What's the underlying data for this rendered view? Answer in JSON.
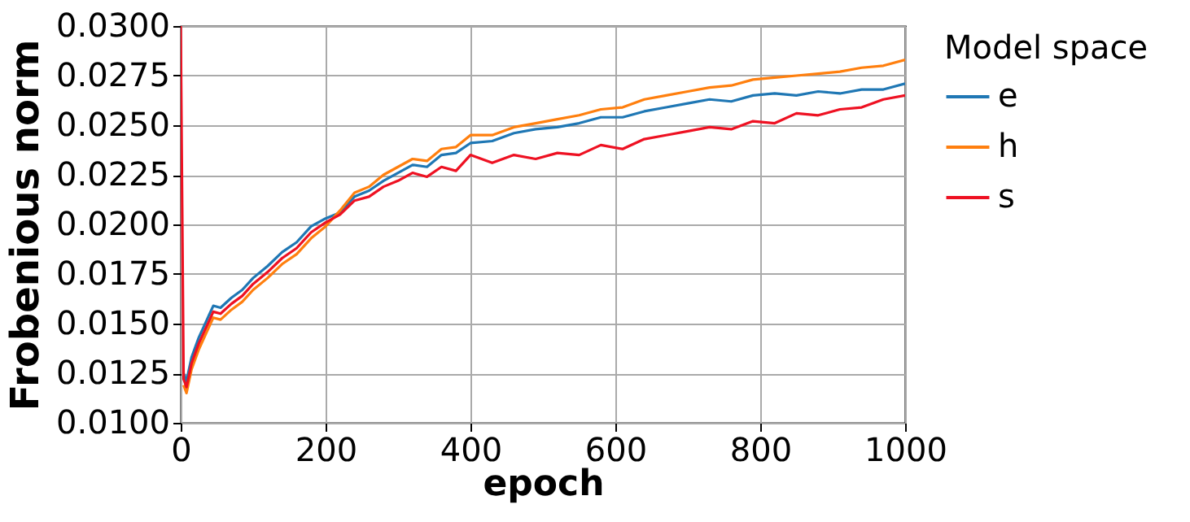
{
  "chart_data": {
    "type": "line",
    "xlabel": "epoch",
    "ylabel": "Frobenious norm",
    "legend_title": "Model space",
    "legend": "right",
    "grid": true,
    "x": [
      0,
      4,
      8,
      15,
      25,
      35,
      45,
      55,
      70,
      85,
      100,
      120,
      140,
      160,
      180,
      200,
      220,
      240,
      260,
      280,
      300,
      320,
      340,
      360,
      380,
      400,
      430,
      460,
      490,
      520,
      550,
      580,
      610,
      640,
      670,
      700,
      730,
      760,
      790,
      820,
      850,
      880,
      910,
      940,
      970,
      1000
    ],
    "xlim": [
      0,
      1000
    ],
    "xticks": [
      0,
      200,
      400,
      600,
      800,
      1000
    ],
    "ylim": [
      0.01,
      0.03
    ],
    "yticks": [
      {
        "value": 0.01,
        "label": "0.0100"
      },
      {
        "value": 0.0125,
        "label": "0.0125"
      },
      {
        "value": 0.015,
        "label": "0.0150"
      },
      {
        "value": 0.0175,
        "label": "0.0175"
      },
      {
        "value": 0.02,
        "label": "0.0200"
      },
      {
        "value": 0.0225,
        "label": "0.0225"
      },
      {
        "value": 0.025,
        "label": "0.0250"
      },
      {
        "value": 0.0275,
        "label": "0.0275"
      },
      {
        "value": 0.03,
        "label": "0.0300"
      }
    ],
    "series": [
      {
        "name": "e",
        "color": "#1f77b4",
        "values": [
          null,
          0.0125,
          0.0121,
          0.0133,
          0.0143,
          0.0151,
          0.0159,
          0.0158,
          0.0163,
          0.0167,
          0.0173,
          0.0179,
          0.0186,
          0.0191,
          0.0199,
          0.0203,
          0.0206,
          0.0214,
          0.0217,
          0.0222,
          0.0226,
          0.023,
          0.0229,
          0.0235,
          0.0236,
          0.0241,
          0.0242,
          0.0246,
          0.0248,
          0.0249,
          0.0251,
          0.0254,
          0.0254,
          0.0257,
          0.0259,
          0.0261,
          0.0263,
          0.0262,
          0.0265,
          0.0266,
          0.0265,
          0.0267,
          0.0266,
          0.0268,
          0.0268,
          0.0271
        ]
      },
      {
        "name": "h",
        "color": "#ff7f0e",
        "values": [
          null,
          0.0119,
          0.0115,
          0.0127,
          0.0137,
          0.0145,
          0.0153,
          0.0152,
          0.0157,
          0.0161,
          0.0167,
          0.0173,
          0.018,
          0.0185,
          0.0193,
          0.0199,
          0.0207,
          0.0216,
          0.0219,
          0.0225,
          0.0229,
          0.0233,
          0.0232,
          0.0238,
          0.0239,
          0.0245,
          0.0245,
          0.0249,
          0.0251,
          0.0253,
          0.0255,
          0.0258,
          0.0259,
          0.0263,
          0.0265,
          0.0267,
          0.0269,
          0.027,
          0.0273,
          0.0274,
          0.0275,
          0.0276,
          0.0277,
          0.0279,
          0.028,
          0.0283
        ]
      },
      {
        "name": "s",
        "color": "#ee1122",
        "values": [
          0.03,
          0.0122,
          0.0118,
          0.013,
          0.014,
          0.0148,
          0.0156,
          0.0155,
          0.016,
          0.0164,
          0.017,
          0.0176,
          0.0183,
          0.0188,
          0.0196,
          0.0201,
          0.0205,
          0.0212,
          0.0214,
          0.0219,
          0.0222,
          0.0226,
          0.0224,
          0.0229,
          0.0227,
          0.0235,
          0.0231,
          0.0235,
          0.0233,
          0.0236,
          0.0235,
          0.024,
          0.0238,
          0.0243,
          0.0245,
          0.0247,
          0.0249,
          0.0248,
          0.0252,
          0.0251,
          0.0256,
          0.0255,
          0.0258,
          0.0259,
          0.0263,
          0.0265
        ]
      }
    ]
  }
}
